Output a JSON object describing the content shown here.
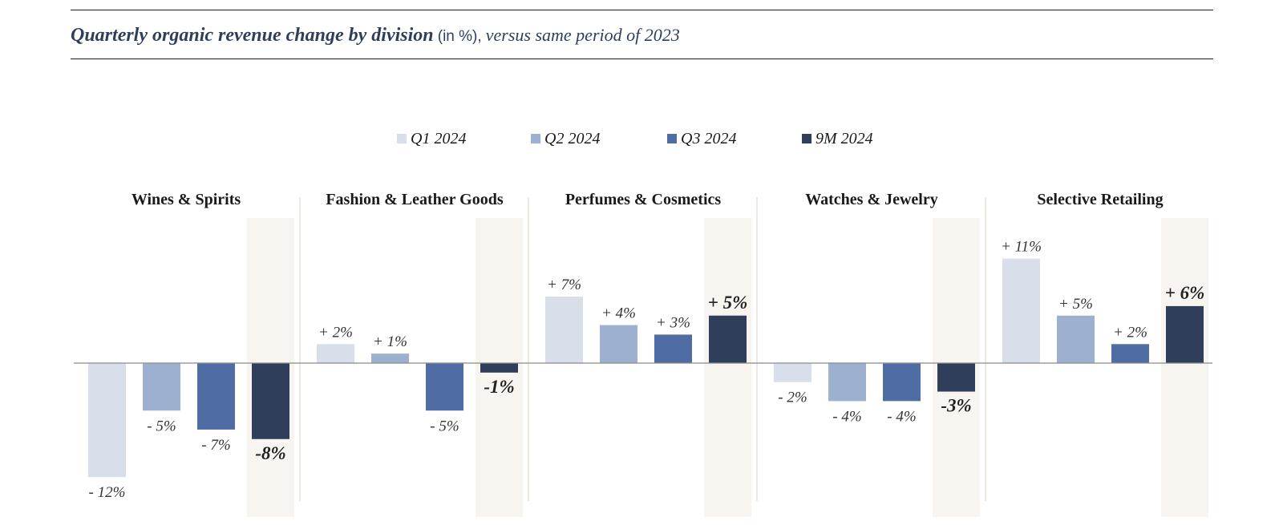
{
  "header": {
    "title": "Quarterly organic revenue change by division",
    "unit": "(in %),",
    "subtitle": "versus same period of 2023"
  },
  "colors": {
    "title": "#2f3f5b",
    "highlight_band": "#f8f5f0",
    "divider": "#e2cfc2",
    "axis": "#8a8a8a",
    "label": "#333333",
    "label_bold": "#222222"
  },
  "chart_data": {
    "type": "bar",
    "title": "Quarterly organic revenue change by division",
    "unit": "%",
    "legend_position": "top-center",
    "grid": false,
    "ylim": [
      -14,
      14
    ],
    "highlighted_series": "9M 2024",
    "series": [
      {
        "name": "Q1 2024",
        "color": "#d8dfeb"
      },
      {
        "name": "Q2 2024",
        "color": "#9db0d0"
      },
      {
        "name": "Q3 2024",
        "color": "#506ca4"
      },
      {
        "name": "9M 2024",
        "color": "#2f3f5b"
      }
    ],
    "categories": [
      "Wines & Spirits",
      "Fashion & Leather Goods",
      "Perfumes & Cosmetics",
      "Watches & Jewelry",
      "Selective Retailing"
    ],
    "values": [
      [
        -12,
        -5,
        -7,
        -8
      ],
      [
        2,
        1,
        -5,
        -1
      ],
      [
        7,
        4,
        3,
        5
      ],
      [
        -2,
        -4,
        -4,
        -3
      ],
      [
        11,
        5,
        2,
        6
      ]
    ],
    "labels": [
      [
        "- 12%",
        "- 5%",
        "- 7%",
        "-8%"
      ],
      [
        "+ 2%",
        "+ 1%",
        "- 5%",
        "-1%"
      ],
      [
        "+ 7%",
        "+ 4%",
        "+ 3%",
        "+ 5%"
      ],
      [
        "- 2%",
        "- 4%",
        "- 4%",
        "-3%"
      ],
      [
        "+ 11%",
        "+ 5%",
        "+ 2%",
        "+ 6%"
      ]
    ]
  }
}
